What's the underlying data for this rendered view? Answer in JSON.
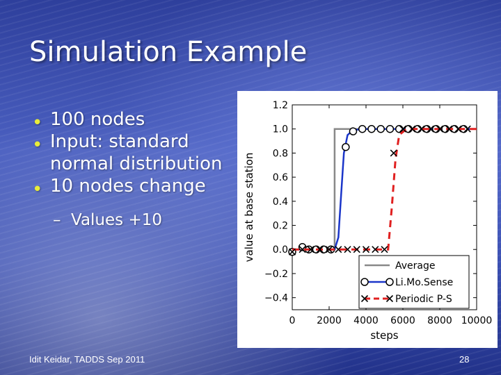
{
  "slide": {
    "title": "Simulation Example",
    "bullets": [
      "100 nodes",
      "Input: standard normal distribution",
      "10 nodes change"
    ],
    "sub_bullets": [
      "Values +10"
    ],
    "footer_left": "Idit Keidar, TADDS Sep 2011",
    "page_number": "28",
    "bullet_color": "#e8ec3a"
  },
  "chart_data": {
    "type": "line",
    "xlabel": "steps",
    "ylabel": "value at base station",
    "xlim": [
      0,
      10000
    ],
    "ylim": [
      -0.5,
      1.2
    ],
    "x_ticks": [
      0,
      2000,
      4000,
      6000,
      8000,
      10000
    ],
    "x_tick_labels": [
      "0",
      "2000",
      "4000",
      "6000",
      "8000",
      "10000"
    ],
    "y_ticks": [
      1.2,
      1.0,
      0.8,
      0.6,
      0.4,
      0.2,
      0.0,
      -0.2,
      -0.4
    ],
    "y_tick_labels": [
      "1.2",
      "1.0",
      "0.8",
      "0.6",
      "0.4",
      "0.2",
      "0.0",
      "−0.2",
      "−0.4"
    ],
    "legend_position": "lower-right",
    "series": [
      {
        "name": "Average",
        "color": "#888888",
        "style": "solid",
        "marker": "none",
        "points": [
          [
            0,
            0.0
          ],
          [
            2300,
            0.0
          ],
          [
            2300,
            1.0
          ],
          [
            10000,
            1.0
          ]
        ]
      },
      {
        "name": "Li.Mo.Sense",
        "color": "#1a35c9",
        "style": "solid",
        "marker": "circle",
        "points": [
          [
            0,
            0.0
          ],
          [
            2300,
            0.0
          ],
          [
            2500,
            0.1
          ],
          [
            2650,
            0.45
          ],
          [
            2800,
            0.8
          ],
          [
            3000,
            0.95
          ],
          [
            3300,
            0.99
          ],
          [
            3800,
            1.0
          ],
          [
            10000,
            1.0
          ]
        ],
        "marker_points": [
          [
            0,
            -0.02
          ],
          [
            550,
            0.02
          ],
          [
            900,
            0.0
          ],
          [
            1300,
            0.0
          ],
          [
            1700,
            0.0
          ],
          [
            2100,
            0.0
          ],
          [
            2900,
            0.85
          ],
          [
            3300,
            0.98
          ],
          [
            3800,
            1.0
          ],
          [
            4300,
            1.0
          ],
          [
            4800,
            1.0
          ],
          [
            5300,
            1.0
          ],
          [
            5800,
            1.0
          ],
          [
            6300,
            1.0
          ],
          [
            6800,
            1.0
          ],
          [
            7300,
            1.0
          ],
          [
            7800,
            1.0
          ],
          [
            8300,
            1.0
          ],
          [
            8800,
            1.0
          ],
          [
            9300,
            1.0
          ]
        ]
      },
      {
        "name": "Periodic P-S",
        "color": "#e02020",
        "style": "dashed",
        "marker": "x",
        "points": [
          [
            0,
            0.0
          ],
          [
            5200,
            0.0
          ],
          [
            5400,
            0.35
          ],
          [
            5600,
            0.75
          ],
          [
            5800,
            0.95
          ],
          [
            6200,
            1.0
          ],
          [
            10000,
            1.0
          ]
        ],
        "marker_points": [
          [
            0,
            -0.02
          ],
          [
            550,
            0.0
          ],
          [
            1000,
            0.0
          ],
          [
            1500,
            0.0
          ],
          [
            2000,
            0.0
          ],
          [
            2500,
            0.0
          ],
          [
            3000,
            0.0
          ],
          [
            3500,
            0.0
          ],
          [
            4000,
            0.0
          ],
          [
            4500,
            0.0
          ],
          [
            5000,
            0.0
          ],
          [
            5500,
            0.8
          ],
          [
            6000,
            1.0
          ],
          [
            6500,
            1.0
          ],
          [
            7000,
            1.0
          ],
          [
            7500,
            1.0
          ],
          [
            8000,
            1.0
          ],
          [
            8500,
            1.0
          ],
          [
            9000,
            1.0
          ],
          [
            9500,
            1.0
          ]
        ]
      }
    ]
  }
}
